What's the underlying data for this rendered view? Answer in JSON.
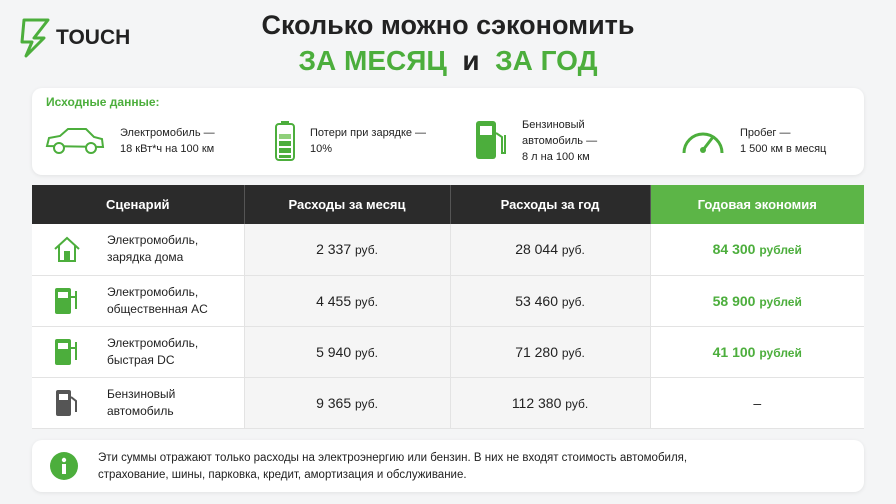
{
  "header": {
    "logo": "TOUCH",
    "title": "Сколько можно сэкономить",
    "subtitle": {
      "month": "ЗА МЕСЯЦ",
      "and": "и",
      "year": "ЗА ГОД"
    }
  },
  "inputs": {
    "label": "Исходные данные:",
    "items": [
      {
        "lines": [
          "Электромобиль —",
          "18 кВт*ч на 100 км"
        ]
      },
      {
        "lines": [
          "Потери при зарядке —",
          "10%"
        ]
      },
      {
        "lines": [
          "Бензиновый",
          "автомобиль —",
          "8 л на 100 км"
        ]
      },
      {
        "lines": [
          "Пробег —",
          "1 500 км в месяц"
        ]
      }
    ]
  },
  "table": {
    "columns": [
      "Сценарий",
      "Расходы за месяц",
      "Расходы за год",
      "Годовая экономия"
    ],
    "rows": [
      {
        "scenario": [
          "Электромобиль,",
          "зарядка дома"
        ],
        "month": {
          "amount": "2 337",
          "unit": "руб."
        },
        "year": {
          "amount": "28 044",
          "unit": "руб."
        },
        "saving": {
          "amount": "84 300",
          "unit": "рублей"
        }
      },
      {
        "scenario": [
          "Электромобиль,",
          "общественная AC"
        ],
        "month": {
          "amount": "4 455",
          "unit": "руб."
        },
        "year": {
          "amount": "53 460",
          "unit": "руб."
        },
        "saving": {
          "amount": "58 900",
          "unit": "рублей"
        }
      },
      {
        "scenario": [
          "Электромобиль,",
          "быстрая DC"
        ],
        "month": {
          "amount": "5 940",
          "unit": "руб."
        },
        "year": {
          "amount": "71 280",
          "unit": "руб."
        },
        "saving": {
          "amount": "41 100",
          "unit": "рублей"
        }
      },
      {
        "scenario": [
          "Бензиновый",
          "автомобиль"
        ],
        "month": {
          "amount": "9 365",
          "unit": "руб."
        },
        "year": {
          "amount": "112 380",
          "unit": "руб."
        },
        "saving": {
          "amount": "–"
        }
      }
    ]
  },
  "note": {
    "lines": [
      "Эти суммы отражают только расходы на электроэнергию или бензин. В них не входят стоимость автомобиля,",
      "страхование, шины, парковка, кредит, амортизация и обслуживание."
    ]
  }
}
